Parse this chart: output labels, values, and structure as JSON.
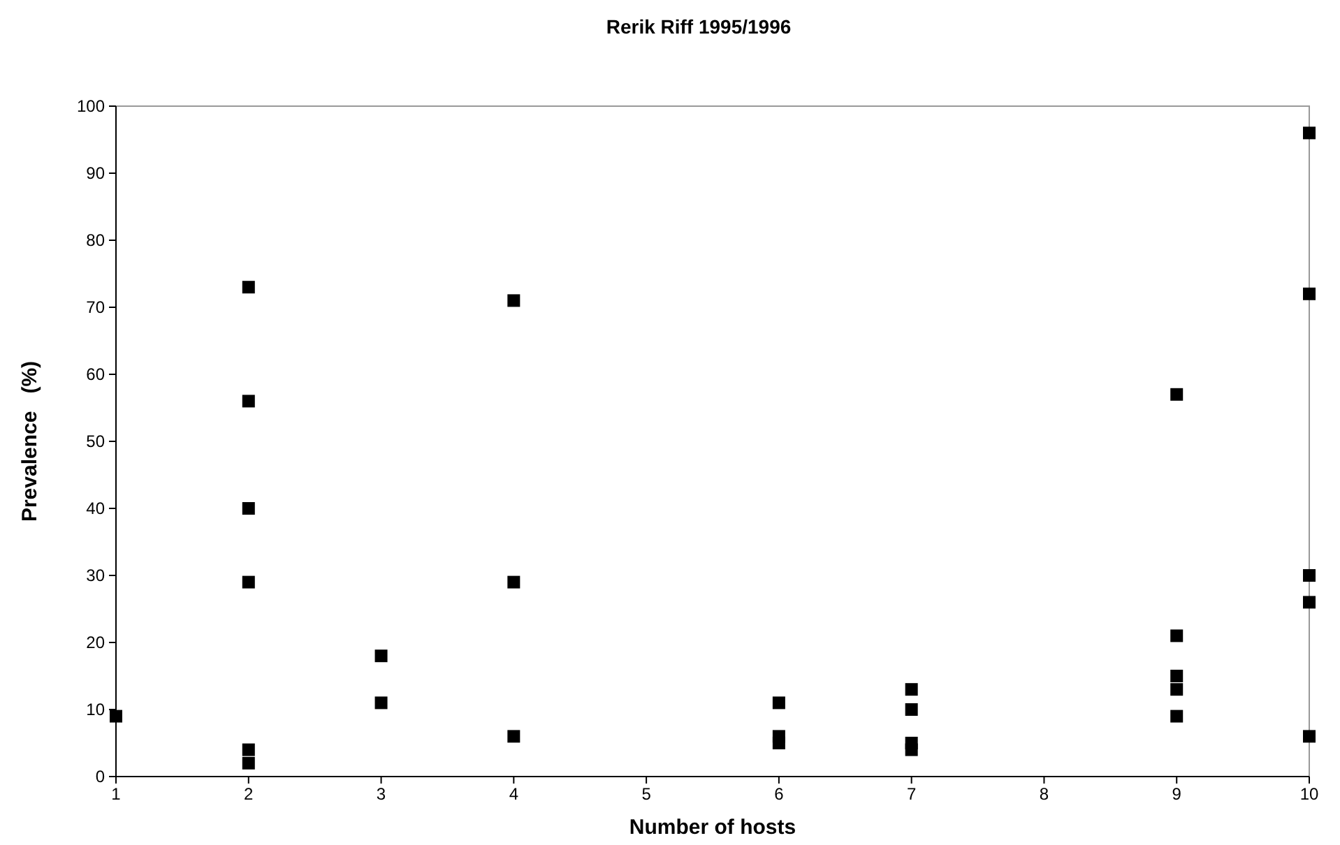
{
  "chart_data": {
    "type": "scatter",
    "title": "Rerik Riff 1995/1996",
    "xlabel": "Number of hosts",
    "ylabel": "Prevalence   (%)",
    "x": [
      1,
      2,
      2,
      2,
      2,
      2,
      2,
      3,
      3,
      4,
      4,
      4,
      6,
      6,
      6,
      7,
      7,
      7,
      7,
      9,
      9,
      9,
      9,
      9,
      10,
      10,
      10,
      10,
      10
    ],
    "values": [
      9,
      73,
      56,
      40,
      29,
      4,
      2,
      18,
      11,
      71,
      29,
      6,
      11,
      6,
      5,
      13,
      10,
      5,
      4,
      57,
      21,
      15,
      13,
      9,
      96,
      72,
      30,
      26,
      6
    ],
    "color": "#000000",
    "marker": "square",
    "grid": false,
    "xlim": [
      1,
      10
    ],
    "xticks": [
      1,
      2,
      3,
      4,
      5,
      6,
      7,
      8,
      9,
      10
    ],
    "ylim": [
      0,
      100
    ],
    "yticks": [
      0,
      10,
      20,
      30,
      40,
      50,
      60,
      70,
      80,
      90,
      100
    ]
  }
}
